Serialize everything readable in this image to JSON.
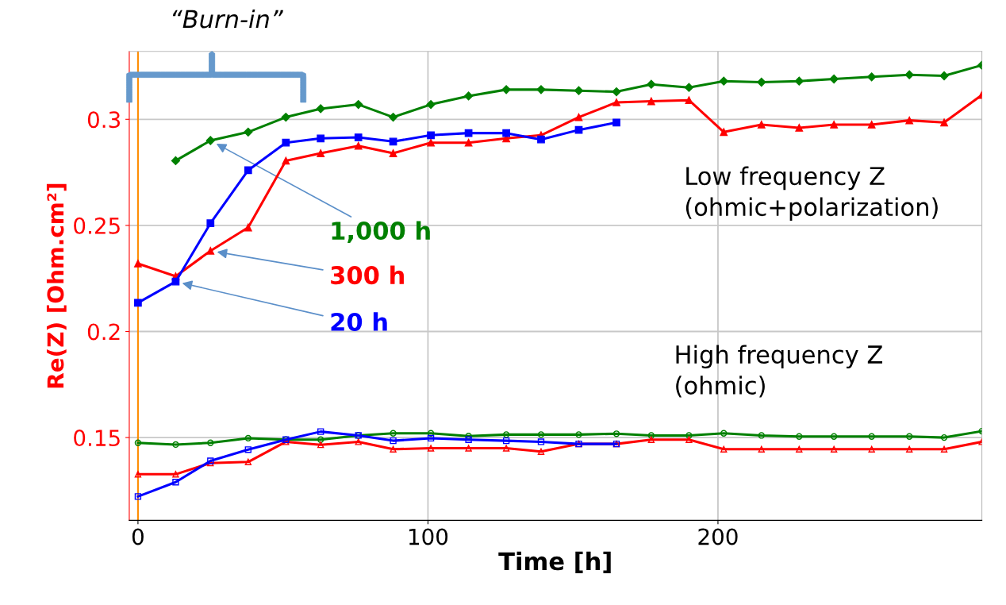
{
  "chart_data": {
    "type": "line",
    "xlabel": "Time [h]",
    "ylabel": "Re(Z) [Ohm.cm²]",
    "xlim": [
      -3,
      291
    ],
    "ylim": [
      0.111,
      0.332
    ],
    "xticks": [
      0,
      100,
      200
    ],
    "yticks": [
      0.15,
      0.2,
      0.25,
      0.3
    ],
    "grid": true,
    "line_style": "solid",
    "series": [
      {
        "name": "1,000 h",
        "color": "#008000",
        "marker": "diamond",
        "x": [
          13,
          25,
          38,
          51,
          63,
          76,
          88,
          101,
          114,
          127,
          139,
          152,
          165,
          177,
          190,
          202,
          215,
          228,
          240,
          253,
          266,
          278,
          291
        ],
        "values": [
          0.2805,
          0.29,
          0.294,
          0.301,
          0.305,
          0.307,
          0.301,
          0.307,
          0.311,
          0.314,
          0.314,
          0.3135,
          0.313,
          0.3165,
          0.315,
          0.318,
          0.3175,
          0.318,
          0.319,
          0.32,
          0.321,
          0.3205,
          0.3255
        ]
      },
      {
        "name": "300 h",
        "color": "#ff0000",
        "marker": "triangle",
        "x": [
          0,
          13,
          25,
          38,
          51,
          63,
          76,
          88,
          101,
          114,
          127,
          139,
          152,
          165,
          177,
          190,
          202,
          215,
          228,
          240,
          253,
          266,
          278,
          291
        ],
        "values": [
          0.232,
          0.226,
          0.238,
          0.249,
          0.2805,
          0.284,
          0.2875,
          0.284,
          0.289,
          0.289,
          0.291,
          0.2925,
          0.301,
          0.308,
          0.3085,
          0.309,
          0.294,
          0.2975,
          0.296,
          0.2975,
          0.2975,
          0.2995,
          0.2985,
          0.3115
        ]
      },
      {
        "name": "20 h",
        "color": "#0000ff",
        "marker": "square",
        "x": [
          0,
          13,
          25,
          38,
          51,
          63,
          76,
          88,
          101,
          114,
          127,
          139,
          152,
          165
        ],
        "values": [
          0.2135,
          0.2235,
          0.251,
          0.276,
          0.289,
          0.291,
          0.2915,
          0.2895,
          0.2925,
          0.2935,
          0.2935,
          0.2905,
          0.295,
          0.2985
        ]
      },
      {
        "color": "#008000",
        "marker": "circle",
        "x": [
          0,
          13,
          25,
          38,
          51,
          63,
          76,
          88,
          101,
          114,
          127,
          139,
          152,
          165,
          177,
          190,
          202,
          215,
          228,
          240,
          253,
          266,
          278,
          291
        ],
        "values": [
          0.1475,
          0.1467,
          0.1475,
          0.1497,
          0.149,
          0.149,
          0.151,
          0.152,
          0.152,
          0.1507,
          0.1514,
          0.1514,
          0.1514,
          0.1518,
          0.151,
          0.151,
          0.152,
          0.151,
          0.1505,
          0.1505,
          0.1505,
          0.1505,
          0.15,
          0.153
        ]
      },
      {
        "color": "#ff0000",
        "marker": "triangle",
        "x": [
          0,
          13,
          25,
          38,
          51,
          63,
          76,
          88,
          101,
          114,
          127,
          139,
          152,
          165,
          177,
          190,
          202,
          215,
          228,
          240,
          253,
          266,
          278,
          291
        ],
        "values": [
          0.1327,
          0.1327,
          0.138,
          0.1385,
          0.148,
          0.1466,
          0.148,
          0.1445,
          0.145,
          0.145,
          0.145,
          0.1434,
          0.147,
          0.147,
          0.149,
          0.149,
          0.1445,
          0.1445,
          0.1445,
          0.1445,
          0.1445,
          0.1445,
          0.1445,
          0.148
        ]
      },
      {
        "color": "#0000ff",
        "marker": "square",
        "x": [
          0,
          13,
          25,
          38,
          51,
          63,
          76,
          88,
          101,
          114,
          127,
          139,
          152,
          165
        ],
        "values": [
          0.1222,
          0.129,
          0.139,
          0.1443,
          0.149,
          0.1528,
          0.151,
          0.1485,
          0.1497,
          0.149,
          0.1485,
          0.148,
          0.147,
          0.147
        ]
      }
    ],
    "ref_lines": [
      {
        "axis": "x",
        "value": 0,
        "color": "#ff8c00"
      }
    ],
    "annotations": [
      "“Burn-in”",
      "Low frequency Z\n(ohmic+polarization)",
      "High frequency Z\n(ohmic)"
    ]
  }
}
